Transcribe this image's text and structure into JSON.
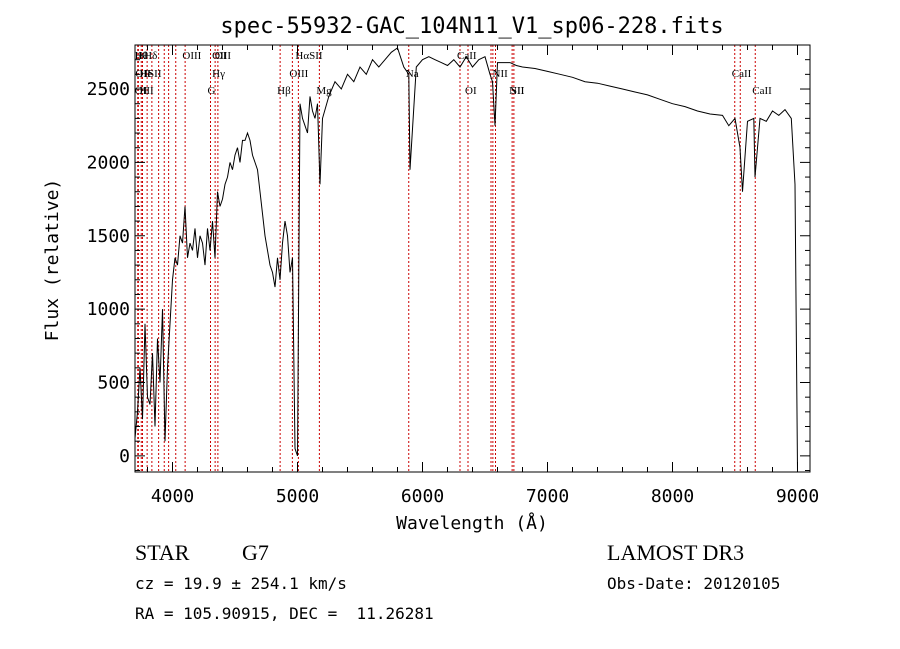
{
  "chart_data": {
    "type": "line",
    "title": "spec-55932-GAC_104N11_V1_sp06-228.fits",
    "xlabel": "Wavelength (Å)",
    "ylabel": "Flux (relative)",
    "xlim": [
      3700,
      9100
    ],
    "ylim": [
      -110,
      2800
    ],
    "xticks": [
      4000,
      5000,
      6000,
      7000,
      8000,
      9000
    ],
    "yticks": [
      0,
      500,
      1000,
      1500,
      2000,
      2500
    ],
    "grid": false,
    "series": [
      {
        "x": [
          3700,
          3720,
          3740,
          3760,
          3780,
          3800,
          3820,
          3840,
          3860,
          3880,
          3900,
          3920,
          3940,
          3960,
          3980,
          4000,
          4020,
          4040,
          4060,
          4080,
          4100,
          4120,
          4140,
          4160,
          4180,
          4200,
          4220,
          4240,
          4260,
          4280,
          4300,
          4320,
          4340,
          4360,
          4380,
          4400,
          4420,
          4440,
          4460,
          4480,
          4500,
          4520,
          4540,
          4560,
          4580,
          4600,
          4620,
          4640,
          4660,
          4680,
          4700,
          4720,
          4740,
          4760,
          4780,
          4800,
          4820,
          4840,
          4860,
          4880,
          4900,
          4920,
          4940,
          4960,
          4980,
          5000,
          5020,
          5040,
          5060,
          5080,
          5100,
          5120,
          5140,
          5160,
          5180,
          5200,
          5250,
          5300,
          5350,
          5400,
          5450,
          5500,
          5550,
          5600,
          5650,
          5700,
          5750,
          5800,
          5850,
          5890,
          5900,
          5950,
          6000,
          6050,
          6100,
          6150,
          6200,
          6250,
          6300,
          6350,
          6400,
          6450,
          6500,
          6540,
          6560,
          6580,
          6600,
          6650,
          6700,
          6750,
          6800,
          6900,
          7000,
          7100,
          7200,
          7300,
          7400,
          7500,
          7600,
          7700,
          7800,
          7900,
          8000,
          8100,
          8200,
          8300,
          8400,
          8450,
          8500,
          8540,
          8560,
          8600,
          8650,
          8660,
          8700,
          8750,
          8800,
          8850,
          8900,
          8950,
          8980,
          9000
        ],
        "y": [
          120,
          300,
          600,
          250,
          900,
          400,
          350,
          700,
          200,
          800,
          500,
          1000,
          100,
          600,
          900,
          1200,
          1350,
          1300,
          1500,
          1450,
          1700,
          1350,
          1450,
          1400,
          1550,
          1350,
          1500,
          1450,
          1300,
          1550,
          1400,
          1600,
          1350,
          1800,
          1700,
          1750,
          1850,
          1900,
          2000,
          1950,
          2050,
          2100,
          2000,
          2150,
          2150,
          2200,
          2150,
          2050,
          2000,
          1950,
          1800,
          1650,
          1500,
          1400,
          1300,
          1250,
          1150,
          1350,
          1200,
          1450,
          1600,
          1500,
          1250,
          1350,
          50,
          0,
          2400,
          2300,
          2250,
          2200,
          2450,
          2350,
          2300,
          2400,
          1850,
          2300,
          2450,
          2550,
          2500,
          2600,
          2550,
          2650,
          2600,
          2700,
          2650,
          2700,
          2750,
          2780,
          2650,
          2600,
          1950,
          2650,
          2700,
          2720,
          2700,
          2680,
          2660,
          2700,
          2650,
          2720,
          2650,
          2700,
          2720,
          2600,
          2550,
          2250,
          2680,
          2680,
          2680,
          2660,
          2650,
          2640,
          2620,
          2600,
          2580,
          2550,
          2540,
          2520,
          2500,
          2480,
          2460,
          2430,
          2400,
          2380,
          2350,
          2330,
          2320,
          2250,
          2300,
          2100,
          1800,
          2280,
          2300,
          1900,
          2300,
          2280,
          2350,
          2320,
          2360,
          2300,
          1850,
          -100
        ]
      }
    ],
    "lines": {
      "top": [
        {
          "w": 3722,
          "label": "Hθ"
        },
        {
          "w": 3750,
          "label": "K"
        },
        {
          "w": 3797,
          "label": "Hδ"
        },
        {
          "w": 4103,
          "label": "OIII"
        },
        {
          "w": 4341,
          "label": "OIII"
        },
        {
          "w": 4363,
          "label": "OI"
        },
        {
          "w": 5007,
          "label": "HαSII"
        },
        {
          "w": 6300,
          "label": "CaII"
        }
      ],
      "mid": [
        {
          "w": 3727,
          "label": "OII"
        },
        {
          "w": 3760,
          "label": "He"
        },
        {
          "w": 3799,
          "label": "ISII"
        },
        {
          "w": 4341,
          "label": "Hγ"
        },
        {
          "w": 4959,
          "label": "OIII"
        },
        {
          "w": 5890,
          "label": "Na"
        },
        {
          "w": 6584,
          "label": "NII"
        },
        {
          "w": 8498,
          "label": "CaII"
        }
      ],
      "bot": [
        {
          "w": 3722,
          "label": "OIII"
        },
        {
          "w": 3760,
          "label": "H"
        },
        {
          "w": 4304,
          "label": "G"
        },
        {
          "w": 4861,
          "label": "Hβ"
        },
        {
          "w": 5175,
          "label": "Mg"
        },
        {
          "w": 6364,
          "label": "OI"
        },
        {
          "w": 6717,
          "label": "NII"
        },
        {
          "w": 6731,
          "label": "SII"
        },
        {
          "w": 8662,
          "label": "CaII"
        }
      ],
      "marks": [
        3722,
        3727,
        3750,
        3760,
        3797,
        3835,
        3889,
        3934,
        3969,
        4026,
        4101,
        4304,
        4341,
        4363,
        4861,
        4959,
        5007,
        5175,
        5890,
        6300,
        6364,
        6548,
        6563,
        6584,
        6717,
        6731,
        8498,
        8542,
        8662
      ]
    }
  },
  "info": {
    "object_class": "STAR",
    "subclass": "G7",
    "survey": "LAMOST DR3",
    "cz": "cz = 19.9 ± 254.1 km/s",
    "obs_date": "Obs-Date: 20120105",
    "radec": "RA = 105.90915, DEC =  11.26281"
  },
  "colors": {
    "line_marker": "#cc0000",
    "axis": "#000000",
    "spectrum": "#000000"
  }
}
